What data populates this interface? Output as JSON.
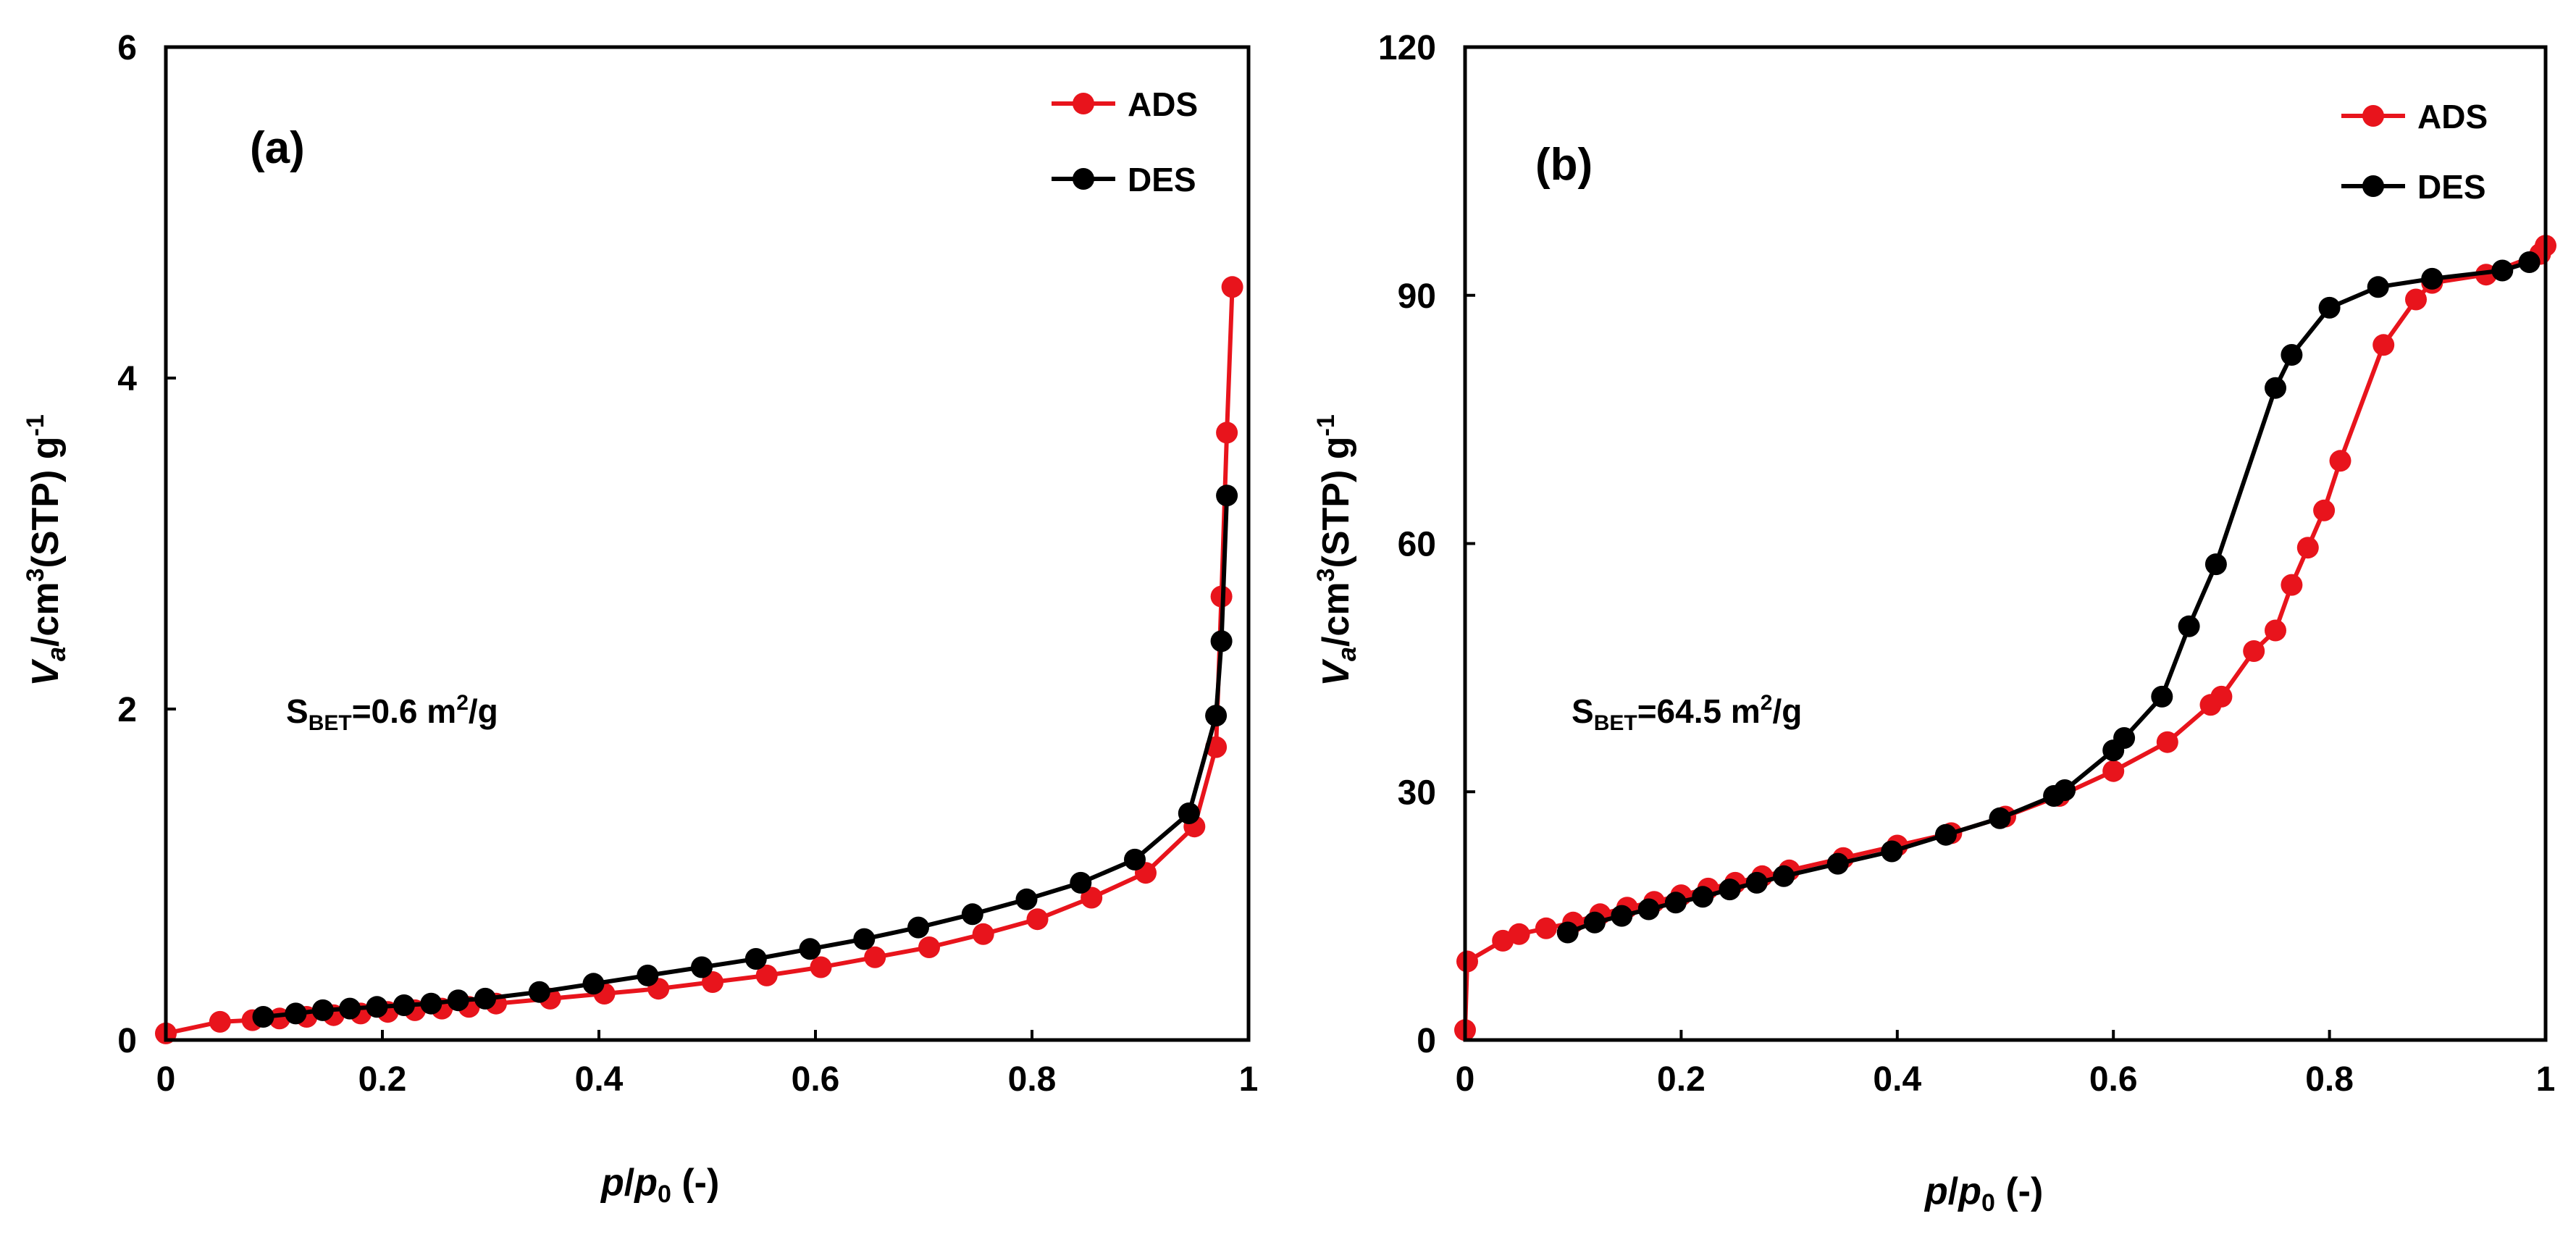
{
  "chart_data": [
    {
      "type": "line",
      "panel_label": "(a)",
      "xlabel_parts": {
        "p": "p",
        "slash": "/",
        "p0": "p",
        "sub0": "0",
        "unit": " (-)"
      },
      "ylabel_parts": {
        "v": "V",
        "sub_a": "a",
        "cm": "/cm",
        "sup3": "3",
        "stp": "(STP) g",
        "sup_neg1": "-1"
      },
      "annotation_parts": {
        "s": "S",
        "sub": "BET",
        "value": "=0.6 m",
        "sup": "2",
        "unit": "/g"
      },
      "xlim": [
        0,
        1
      ],
      "ylim": [
        0,
        6
      ],
      "xticks": [
        0,
        0.2,
        0.4,
        0.6,
        0.8,
        1
      ],
      "xtick_labels": [
        "0",
        "0.2",
        "0.4",
        "0.6",
        "0.8",
        "1"
      ],
      "yticks": [
        0,
        2,
        4,
        6
      ],
      "ytick_labels": [
        "0",
        "2",
        "4",
        "6"
      ],
      "legend": {
        "position": "top-right",
        "entries": [
          "ADS",
          "DES"
        ]
      },
      "series": [
        {
          "name": "ADS",
          "color": "#e8141c",
          "x": [
            0.0,
            0.05,
            0.08,
            0.105,
            0.13,
            0.155,
            0.18,
            0.205,
            0.23,
            0.255,
            0.28,
            0.305,
            0.355,
            0.405,
            0.455,
            0.505,
            0.555,
            0.605,
            0.655,
            0.705,
            0.755,
            0.805,
            0.855,
            0.905,
            0.95,
            0.97,
            0.975,
            0.98,
            0.985
          ],
          "y": [
            0.04,
            0.11,
            0.12,
            0.13,
            0.14,
            0.15,
            0.16,
            0.17,
            0.18,
            0.19,
            0.2,
            0.22,
            0.25,
            0.28,
            0.31,
            0.35,
            0.39,
            0.44,
            0.5,
            0.56,
            0.64,
            0.73,
            0.86,
            1.01,
            1.29,
            1.77,
            2.68,
            3.67,
            4.55
          ]
        },
        {
          "name": "DES",
          "color": "#000000",
          "x": [
            0.09,
            0.12,
            0.145,
            0.17,
            0.195,
            0.22,
            0.245,
            0.27,
            0.295,
            0.345,
            0.395,
            0.445,
            0.495,
            0.545,
            0.595,
            0.645,
            0.695,
            0.745,
            0.795,
            0.845,
            0.895,
            0.945,
            0.97,
            0.975,
            0.98
          ],
          "y": [
            0.14,
            0.16,
            0.18,
            0.19,
            0.2,
            0.21,
            0.22,
            0.24,
            0.25,
            0.29,
            0.34,
            0.39,
            0.44,
            0.49,
            0.55,
            0.61,
            0.68,
            0.76,
            0.85,
            0.95,
            1.09,
            1.37,
            1.96,
            2.41,
            3.29
          ]
        }
      ]
    },
    {
      "type": "line",
      "panel_label": "(b)",
      "xlabel_parts": {
        "p": "p",
        "slash": "/",
        "p0": "p",
        "sub0": "0",
        "unit": " (-)"
      },
      "ylabel_parts": {
        "v": "V",
        "sub_a": "a",
        "cm": "/cm",
        "sup3": "3",
        "stp": "(STP) g",
        "sup_neg1": "-1"
      },
      "annotation_parts": {
        "s": "S",
        "sub": "BET",
        "value": "=64.5 m",
        "sup": "2",
        "unit": "/g"
      },
      "xlim": [
        0,
        1
      ],
      "ylim": [
        0,
        120
      ],
      "xticks": [
        0,
        0.2,
        0.4,
        0.6,
        0.8,
        1
      ],
      "xtick_labels": [
        "0",
        "0.2",
        "0.4",
        "0.6",
        "0.8",
        "1"
      ],
      "yticks": [
        0,
        30,
        60,
        90,
        120
      ],
      "ytick_labels": [
        "0",
        "30",
        "60",
        "90",
        "120"
      ],
      "legend": {
        "position": "top-right",
        "entries": [
          "ADS",
          "DES"
        ]
      },
      "series": [
        {
          "name": "ADS",
          "color": "#e8141c",
          "x": [
            0.0,
            0.002,
            0.035,
            0.05,
            0.075,
            0.1,
            0.125,
            0.15,
            0.175,
            0.2,
            0.225,
            0.25,
            0.275,
            0.3,
            0.35,
            0.4,
            0.45,
            0.5,
            0.55,
            0.6,
            0.65,
            0.69,
            0.7,
            0.73,
            0.75,
            0.765,
            0.78,
            0.795,
            0.81,
            0.85,
            0.88,
            0.895,
            0.945,
            0.995,
            1.0
          ],
          "y": [
            1.2,
            9.5,
            12,
            12.8,
            13.5,
            14.2,
            15.2,
            16,
            16.7,
            17.5,
            18.3,
            19,
            19.8,
            20.5,
            22,
            23.5,
            25,
            27,
            29.5,
            32.5,
            36,
            40.5,
            41.5,
            47,
            49.5,
            55,
            59.5,
            64,
            70,
            84,
            89.5,
            91.5,
            92.5,
            95,
            96
          ]
        },
        {
          "name": "DES",
          "color": "#000000",
          "x": [
            0.095,
            0.12,
            0.145,
            0.17,
            0.195,
            0.22,
            0.245,
            0.27,
            0.295,
            0.345,
            0.395,
            0.445,
            0.495,
            0.545,
            0.555,
            0.6,
            0.61,
            0.645,
            0.67,
            0.695,
            0.75,
            0.765,
            0.8,
            0.845,
            0.895,
            0.96,
            0.985
          ],
          "y": [
            13,
            14.2,
            15,
            15.8,
            16.6,
            17.3,
            18.2,
            19,
            19.8,
            21.3,
            22.8,
            24.8,
            26.8,
            29.5,
            30.2,
            35,
            36.5,
            41.5,
            50,
            57.5,
            78.8,
            82.8,
            88.5,
            91,
            92,
            93,
            94
          ]
        }
      ]
    }
  ]
}
